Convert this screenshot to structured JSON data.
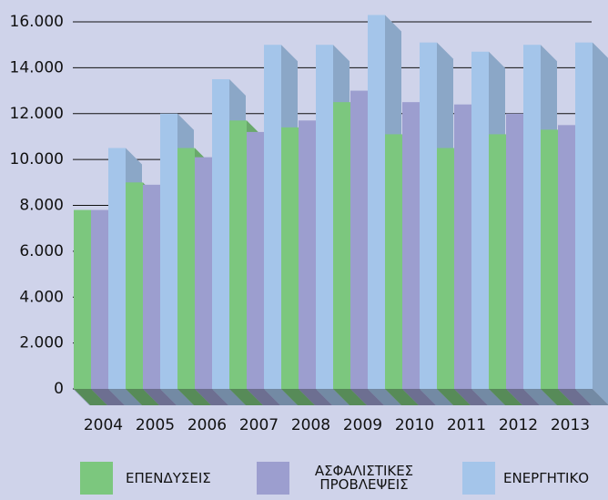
{
  "chart_data": {
    "type": "bar",
    "categories": [
      "2004",
      "2005",
      "2006",
      "2007",
      "2008",
      "2009",
      "2010",
      "2011",
      "2012",
      "2013"
    ],
    "series": [
      {
        "name": "ΕΠΕΝΔΥΣΕΙΣ",
        "color": "#7cc77e",
        "values": [
          7800,
          9000,
          10500,
          11700,
          11400,
          12500,
          11100,
          10500,
          11100,
          11300
        ]
      },
      {
        "name": "ΑΣΦΑΛΙΣΤΙΚΕΣ ΠΡΟΒΛΕΨΕΙΣ",
        "color": "#9c9ecf",
        "values": [
          7800,
          8900,
          10100,
          11200,
          11700,
          13000,
          12500,
          12400,
          12000,
          11500
        ]
      },
      {
        "name": "ΕΝΕΡΓΗΤΙΚΟ",
        "color": "#a4c5ea",
        "values": [
          10500,
          12000,
          13500,
          15000,
          15000,
          16300,
          15100,
          14700,
          15000,
          15100
        ]
      }
    ],
    "ylim": [
      0,
      16000
    ],
    "yticks": [
      0,
      {
        "value": 2000,
        "label": "2.000"
      },
      {
        "value": 4000,
        "label": "4.000"
      },
      {
        "value": 6000,
        "label": "6.000"
      },
      {
        "value": 8000,
        "label": "8.000"
      },
      {
        "value": 10000,
        "label": "10.000"
      },
      {
        "value": 12000,
        "label": "12.000"
      },
      {
        "value": 14000,
        "label": "14.000"
      },
      {
        "value": 16000,
        "label": "16.000"
      }
    ],
    "grid": true
  }
}
